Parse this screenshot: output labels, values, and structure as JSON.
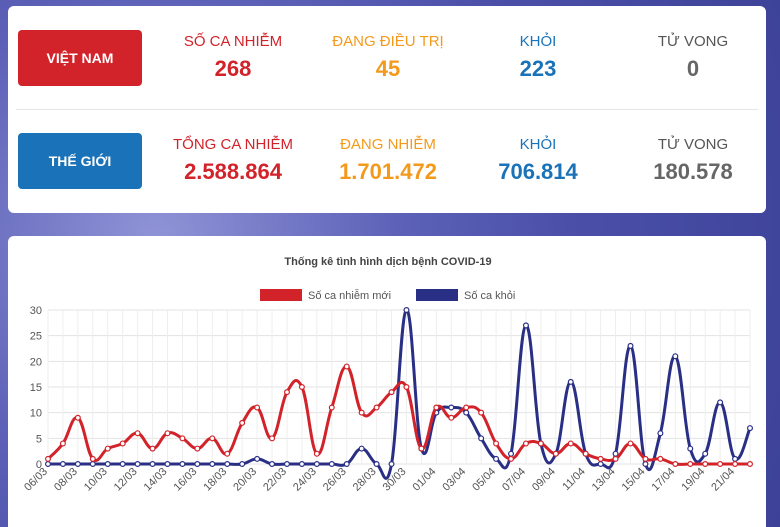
{
  "vietnam": {
    "label": "VIỆT NAM",
    "stats": [
      {
        "label": "SỐ CA NHIỄM",
        "value": "268"
      },
      {
        "label": "ĐANG ĐIỀU TRỊ",
        "value": "45"
      },
      {
        "label": "KHỎI",
        "value": "223"
      },
      {
        "label": "TỬ VONG",
        "value": "0"
      }
    ]
  },
  "world": {
    "label": "THẾ GIỚI",
    "stats": [
      {
        "label": "TỔNG CA NHIỄM",
        "value": "2.588.864"
      },
      {
        "label": "ĐANG NHIỄM",
        "value": "1.701.472"
      },
      {
        "label": "KHỎI",
        "value": "706.814"
      },
      {
        "label": "TỬ VONG",
        "value": "180.578"
      }
    ]
  },
  "colors": {
    "red": "#d2232a",
    "orange": "#f39a1c",
    "blue": "#1a73b8",
    "gray": "#555555",
    "infected_series": "#d2232a",
    "recovered_series": "#2a2f86"
  },
  "chart_data": {
    "type": "line",
    "title": "Thống kê tình hình dịch bệnh COVID-19",
    "xlabel": "",
    "ylabel": "",
    "ylim": [
      0,
      30
    ],
    "yticks": [
      0,
      5,
      10,
      15,
      20,
      25,
      30
    ],
    "grid": true,
    "legend_position": "top-center",
    "x": [
      "06/03",
      "07/03",
      "08/03",
      "09/03",
      "10/03",
      "11/03",
      "12/03",
      "13/03",
      "14/03",
      "15/03",
      "16/03",
      "17/03",
      "18/03",
      "19/03",
      "20/03",
      "21/03",
      "22/03",
      "23/03",
      "24/03",
      "25/03",
      "26/03",
      "27/03",
      "28/03",
      "29/03",
      "30/03",
      "31/03",
      "01/04",
      "02/04",
      "03/04",
      "04/04",
      "05/04",
      "06/04",
      "07/04",
      "08/04",
      "09/04",
      "10/04",
      "11/04",
      "12/04",
      "13/04",
      "14/04",
      "15/04",
      "16/04",
      "17/04",
      "18/04",
      "19/04",
      "20/04",
      "21/04",
      "22/04"
    ],
    "x_tick_labels": [
      "06/03",
      "08/03",
      "10/03",
      "12/03",
      "14/03",
      "16/03",
      "18/03",
      "20/03",
      "22/03",
      "24/03",
      "26/03",
      "28/03",
      "30/03",
      "01/04",
      "03/04",
      "05/04",
      "07/04",
      "09/04",
      "11/04",
      "13/04",
      "15/04",
      "17/04",
      "19/04",
      "21/04"
    ],
    "series": [
      {
        "name": "Số ca nhiễm mới",
        "color": "#d2232a",
        "values": [
          1,
          4,
          9,
          1,
          3,
          4,
          6,
          3,
          6,
          5,
          3,
          5,
          2,
          8,
          11,
          5,
          14,
          15,
          2,
          11,
          19,
          10,
          11,
          14,
          15,
          3,
          11,
          9,
          11,
          10,
          4,
          1,
          4,
          4,
          2,
          4,
          2,
          1,
          1,
          4,
          1,
          1,
          0,
          0,
          0,
          0,
          0,
          0
        ]
      },
      {
        "name": "Số ca khỏi",
        "color": "#2a2f86",
        "values": [
          0,
          0,
          0,
          0,
          0,
          0,
          0,
          0,
          0,
          0,
          0,
          0,
          0,
          0,
          1,
          0,
          0,
          0,
          0,
          0,
          0,
          3,
          0,
          0,
          30,
          3,
          10,
          11,
          10,
          5,
          1,
          2,
          27,
          4,
          2,
          16,
          2,
          0,
          2,
          23,
          0,
          6,
          21,
          3,
          2,
          12,
          1,
          7
        ]
      }
    ]
  }
}
